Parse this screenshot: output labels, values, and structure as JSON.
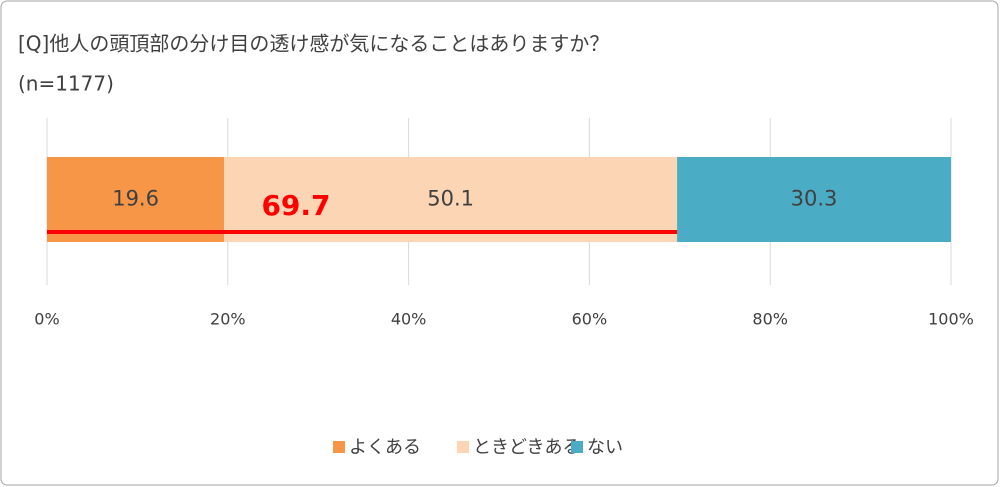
{
  "chart_data": {
    "type": "stacked-bar-horizontal",
    "title": "[Q]他人の頭頂部の分け目の透け感が気になることはありますか？",
    "subtitle": "(n=1177)",
    "categories": [
      null
    ],
    "series": [
      {
        "name": "よくある",
        "color": "#f79646",
        "values": [
          19.6
        ]
      },
      {
        "name": "ときどきある",
        "color": "#fcd5b5",
        "values": [
          50.1
        ]
      },
      {
        "name": "ない",
        "color": "#4bacc6",
        "values": [
          30.3
        ]
      }
    ],
    "annotation": {
      "value": 69.7,
      "color": "#ff0000"
    },
    "xlim": [
      0,
      100
    ],
    "xticks": [
      {
        "value": 0,
        "label": "0%"
      },
      {
        "value": 20,
        "label": "20%"
      },
      {
        "value": 40,
        "label": "40%"
      },
      {
        "value": 60,
        "label": "60%"
      },
      {
        "value": 80,
        "label": "80%"
      },
      {
        "value": 100,
        "label": "100%"
      }
    ],
    "grid": true,
    "legend": "bottom"
  }
}
